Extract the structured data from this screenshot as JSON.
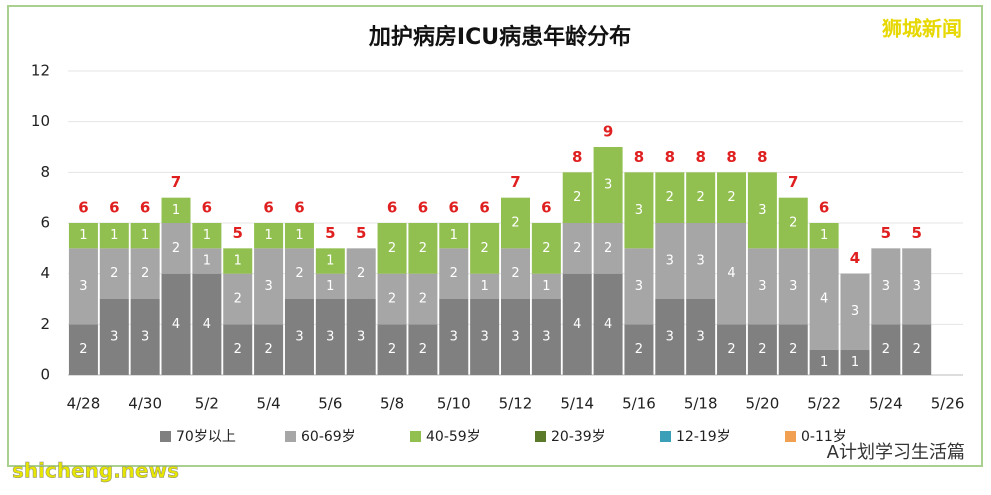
{
  "chart_data": {
    "type": "stacked-bar",
    "title": "加护病房ICU病患年龄分布",
    "categories": [
      "4/28",
      null,
      "4/30",
      null,
      "5/2",
      null,
      "5/4",
      null,
      "5/6",
      null,
      "5/8",
      null,
      "5/10",
      null,
      "5/12",
      null,
      "5/14",
      null,
      "5/16",
      null,
      "5/18",
      null,
      "5/20",
      null,
      "5/22",
      null,
      "5/24",
      null,
      "5/26"
    ],
    "series": [
      {
        "name": "70岁以上",
        "color": "#808080",
        "values": [
          2,
          3,
          3,
          4,
          4,
          2,
          2,
          3,
          3,
          3,
          2,
          2,
          3,
          3,
          3,
          3,
          4,
          4,
          2,
          3,
          3,
          2,
          2,
          2,
          1,
          1,
          2,
          2,
          null
        ]
      },
      {
        "name": "60-69岁",
        "color": "#a6a6a6",
        "values": [
          3,
          2,
          2,
          2,
          1,
          2,
          3,
          2,
          1,
          2,
          2,
          2,
          2,
          1,
          2,
          1,
          2,
          2,
          3,
          3,
          3,
          4,
          3,
          3,
          4,
          3,
          3,
          3,
          null
        ]
      },
      {
        "name": "40-59岁",
        "color": "#92c050",
        "values": [
          1,
          1,
          1,
          1,
          1,
          1,
          1,
          1,
          1,
          0,
          2,
          2,
          1,
          2,
          2,
          2,
          2,
          3,
          3,
          2,
          2,
          2,
          3,
          2,
          1,
          0,
          0,
          0,
          null
        ]
      },
      {
        "name": "20-39岁",
        "color": "#5b7a2a",
        "values": [
          0,
          0,
          0,
          0,
          0,
          0,
          0,
          0,
          0,
          0,
          0,
          0,
          0,
          0,
          0,
          0,
          0,
          0,
          0,
          0,
          0,
          0,
          0,
          0,
          0,
          0,
          0,
          0,
          null
        ]
      },
      {
        "name": "12-19岁",
        "color": "#3c9fb8",
        "values": [
          0,
          0,
          0,
          0,
          0,
          0,
          0,
          0,
          0,
          0,
          0,
          0,
          0,
          0,
          0,
          0,
          0,
          0,
          0,
          0,
          0,
          0,
          0,
          0,
          0,
          0,
          0,
          0,
          null
        ]
      },
      {
        "name": "0-11岁",
        "color": "#f0a050",
        "values": [
          0,
          0,
          0,
          0,
          0,
          0,
          0,
          0,
          0,
          0,
          0,
          0,
          0,
          0,
          0,
          0,
          0,
          0,
          0,
          0,
          0,
          0,
          0,
          0,
          0,
          0,
          0,
          0,
          null
        ]
      }
    ],
    "totals": [
      6,
      6,
      6,
      7,
      6,
      5,
      6,
      6,
      5,
      5,
      6,
      6,
      6,
      6,
      7,
      6,
      8,
      9,
      8,
      8,
      8,
      8,
      8,
      7,
      6,
      4,
      5,
      5,
      null
    ],
    "ylim": [
      0,
      12
    ],
    "yticks": [
      0,
      2,
      4,
      6,
      8,
      10,
      12
    ],
    "grid": true
  },
  "watermark": "狮城新闻",
  "site": "shicheng.news",
  "account": "A计划学习生活篇"
}
